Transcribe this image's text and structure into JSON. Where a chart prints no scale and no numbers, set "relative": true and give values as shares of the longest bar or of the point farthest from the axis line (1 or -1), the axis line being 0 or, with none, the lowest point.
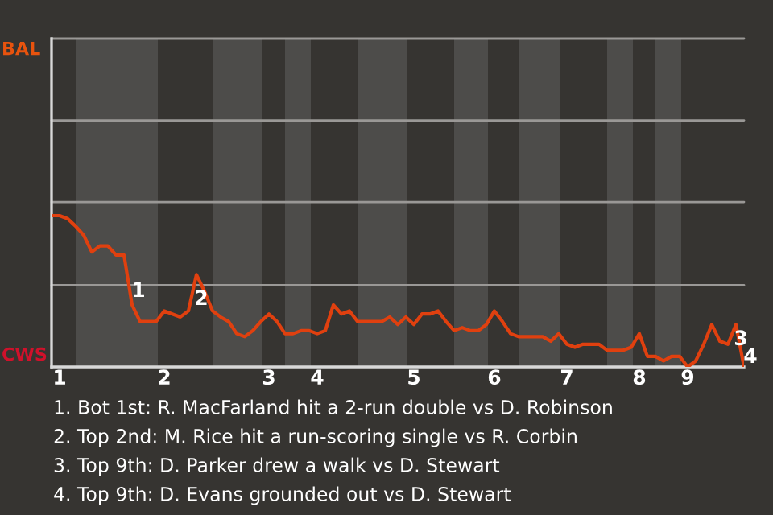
{
  "chart_data": {
    "type": "line",
    "relative": true,
    "categories": [
      null,
      "1",
      null,
      null,
      null,
      null,
      null,
      null,
      null,
      null,
      null,
      null,
      null,
      null,
      "2",
      null,
      null,
      null,
      null,
      null,
      null,
      null,
      null,
      null,
      null,
      null,
      null,
      "3",
      null,
      null,
      null,
      null,
      null,
      "4",
      null,
      null,
      null,
      null,
      null,
      null,
      null,
      null,
      null,
      null,
      null,
      "5",
      null,
      null,
      null,
      null,
      null,
      null,
      null,
      null,
      null,
      "6",
      null,
      null,
      null,
      null,
      null,
      null,
      null,
      null,
      "7",
      null,
      null,
      null,
      null,
      null,
      null,
      null,
      null,
      "8",
      null,
      null,
      null,
      null,
      null,
      "9",
      null,
      null,
      null,
      null,
      null,
      null,
      null
    ],
    "series": [
      {
        "color": "#e0400f",
        "values": [
          1.0,
          1.0,
          0.98,
          0.93,
          0.87,
          0.76,
          0.8,
          0.8,
          0.74,
          0.74,
          0.41,
          0.3,
          0.3,
          0.3,
          0.37,
          0.35,
          0.33,
          0.37,
          0.61,
          0.5,
          0.37,
          0.33,
          0.3,
          0.22,
          0.2,
          0.24,
          0.3,
          0.35,
          0.3,
          0.22,
          0.22,
          0.24,
          0.24,
          0.22,
          0.24,
          0.41,
          0.35,
          0.37,
          0.3,
          0.3,
          0.3,
          0.3,
          0.33,
          0.28,
          0.33,
          0.28,
          0.35,
          0.35,
          0.37,
          0.3,
          0.24,
          0.26,
          0.24,
          0.24,
          0.28,
          0.37,
          0.3,
          0.22,
          0.2,
          0.2,
          0.2,
          0.2,
          0.17,
          0.22,
          0.15,
          0.13,
          0.15,
          0.15,
          0.15,
          0.11,
          0.11,
          0.11,
          0.13,
          0.22,
          0.07,
          0.07,
          0.04,
          0.07,
          0.07,
          0.0,
          0.04,
          0.15,
          0.28,
          0.17,
          0.15,
          0.28,
          0.0
        ]
      }
    ],
    "ref_lines": [
      {
        "axis": "y",
        "value": 0.54,
        "color": "#9a9896"
      },
      {
        "axis": "y",
        "value": 1.09,
        "color": "#9a9896"
      },
      {
        "axis": "y",
        "value": 1.63,
        "color": "#9a9896"
      },
      {
        "axis": "y",
        "value": 2.17,
        "color": "#9a9896"
      }
    ],
    "annotations": [
      "1",
      "2",
      "3",
      "4",
      "BAL",
      "CWS",
      "1. Bot 1st: R. MacFarland hit a 2-run double vs D. Robinson",
      "2. Top 2nd: M. Rice hit a run-scoring single vs R. Corbin",
      "3. Top 9th: D. Parker drew a walk vs D. Stewart",
      "4. Top 9th: D. Evans grounded out vs D. Stewart"
    ]
  }
}
